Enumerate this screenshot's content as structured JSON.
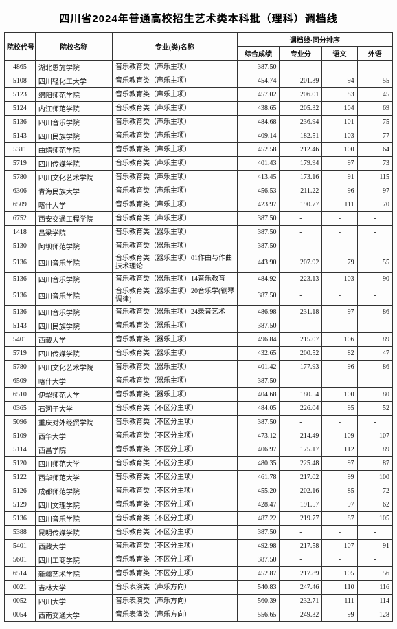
{
  "title": "四川省2024年普通高校招生艺术类本科批（理科）调档线",
  "headers": {
    "code": "院校代号",
    "name": "院校名称",
    "major": "专业(类)名称",
    "group": "调档线·同分排序",
    "zh": "综合成绩",
    "zy": "专业分",
    "yw": "语文",
    "wy": "外语"
  },
  "rows": [
    {
      "code": "4865",
      "name": "湖北恩施学院",
      "major": "音乐教育类（声乐主项）",
      "zh": "387.50",
      "zy": "-",
      "yw": "-",
      "wy": "-"
    },
    {
      "code": "5108",
      "name": "四川轻化工大学",
      "major": "音乐教育类（声乐主项）",
      "zh": "454.74",
      "zy": "201.39",
      "yw": "94",
      "wy": "55"
    },
    {
      "code": "5123",
      "name": "绵阳师范学院",
      "major": "音乐教育类（声乐主项）",
      "zh": "457.02",
      "zy": "206.01",
      "yw": "83",
      "wy": "45"
    },
    {
      "code": "5124",
      "name": "内江师范学院",
      "major": "音乐教育类（声乐主项）",
      "zh": "438.65",
      "zy": "205.32",
      "yw": "104",
      "wy": "69"
    },
    {
      "code": "5136",
      "name": "四川音乐学院",
      "major": "音乐教育类（声乐主项）",
      "zh": "484.68",
      "zy": "236.94",
      "yw": "101",
      "wy": "75"
    },
    {
      "code": "5143",
      "name": "四川民族学院",
      "major": "音乐教育类（声乐主项）",
      "zh": "409.14",
      "zy": "182.51",
      "yw": "103",
      "wy": "77"
    },
    {
      "code": "5311",
      "name": "曲靖师范学院",
      "major": "音乐教育类（声乐主项）",
      "zh": "452.58",
      "zy": "212.46",
      "yw": "100",
      "wy": "64"
    },
    {
      "code": "5719",
      "name": "四川传媒学院",
      "major": "音乐教育类（声乐主项）",
      "zh": "401.43",
      "zy": "179.94",
      "yw": "97",
      "wy": "73"
    },
    {
      "code": "5780",
      "name": "四川文化艺术学院",
      "major": "音乐教育类（声乐主项）",
      "zh": "413.45",
      "zy": "173.16",
      "yw": "91",
      "wy": "115"
    },
    {
      "code": "6306",
      "name": "青海民族大学",
      "major": "音乐教育类（声乐主项）",
      "zh": "456.53",
      "zy": "211.22",
      "yw": "96",
      "wy": "97"
    },
    {
      "code": "6509",
      "name": "喀什大学",
      "major": "音乐教育类（声乐主项）",
      "zh": "423.97",
      "zy": "190.77",
      "yw": "111",
      "wy": "70"
    },
    {
      "code": "6752",
      "name": "西安交通工程学院",
      "major": "音乐教育类（声乐主项）",
      "zh": "387.50",
      "zy": "-",
      "yw": "-",
      "wy": "-"
    },
    {
      "code": "1418",
      "name": "吕梁学院",
      "major": "音乐教育类（器乐主项）",
      "zh": "387.50",
      "zy": "-",
      "yw": "-",
      "wy": "-"
    },
    {
      "code": "5130",
      "name": "阿坝师范学院",
      "major": "音乐教育类（器乐主项）",
      "zh": "387.50",
      "zy": "-",
      "yw": "-",
      "wy": "-"
    },
    {
      "code": "5136",
      "name": "四川音乐学院",
      "major": "音乐教育类（器乐主项）01作曲与作曲技术理论",
      "zh": "443.90",
      "zy": "207.92",
      "yw": "79",
      "wy": "55"
    },
    {
      "code": "5136",
      "name": "四川音乐学院",
      "major": "音乐教育类（器乐主项）14音乐教育",
      "zh": "484.92",
      "zy": "223.13",
      "yw": "103",
      "wy": "90"
    },
    {
      "code": "5136",
      "name": "四川音乐学院",
      "major": "音乐教育类（器乐主项）20音乐学(钢琴调律)",
      "zh": "387.50",
      "zy": "-",
      "yw": "-",
      "wy": "-"
    },
    {
      "code": "5136",
      "name": "四川音乐学院",
      "major": "音乐教育类（器乐主项）24录音艺术",
      "zh": "486.98",
      "zy": "231.18",
      "yw": "97",
      "wy": "86"
    },
    {
      "code": "5143",
      "name": "四川民族学院",
      "major": "音乐教育类（器乐主项）",
      "zh": "387.50",
      "zy": "-",
      "yw": "-",
      "wy": "-"
    },
    {
      "code": "5401",
      "name": "西藏大学",
      "major": "音乐教育类（器乐主项）",
      "zh": "496.84",
      "zy": "215.07",
      "yw": "106",
      "wy": "89"
    },
    {
      "code": "5719",
      "name": "四川传媒学院",
      "major": "音乐教育类（器乐主项）",
      "zh": "432.65",
      "zy": "200.52",
      "yw": "82",
      "wy": "47"
    },
    {
      "code": "5780",
      "name": "四川文化艺术学院",
      "major": "音乐教育类（器乐主项）",
      "zh": "401.42",
      "zy": "177.93",
      "yw": "96",
      "wy": "86"
    },
    {
      "code": "6509",
      "name": "喀什大学",
      "major": "音乐教育类（器乐主项）",
      "zh": "387.50",
      "zy": "-",
      "yw": "-",
      "wy": "-"
    },
    {
      "code": "6510",
      "name": "伊犁师范大学",
      "major": "音乐教育类（器乐主项）",
      "zh": "404.68",
      "zy": "180.54",
      "yw": "100",
      "wy": "80"
    },
    {
      "code": "0365",
      "name": "石河子大学",
      "major": "音乐教育类（不区分主项）",
      "zh": "484.05",
      "zy": "226.04",
      "yw": "95",
      "wy": "52"
    },
    {
      "code": "5096",
      "name": "重庆对外经贸学院",
      "major": "音乐教育类（不区分主项）",
      "zh": "387.50",
      "zy": "-",
      "yw": "-",
      "wy": "-"
    },
    {
      "code": "5109",
      "name": "西华大学",
      "major": "音乐教育类（不区分主项）",
      "zh": "473.12",
      "zy": "214.49",
      "yw": "109",
      "wy": "107"
    },
    {
      "code": "5114",
      "name": "西昌学院",
      "major": "音乐教育类（不区分主项）",
      "zh": "406.97",
      "zy": "175.17",
      "yw": "112",
      "wy": "89"
    },
    {
      "code": "5120",
      "name": "四川师范大学",
      "major": "音乐教育类（不区分主项）",
      "zh": "480.35",
      "zy": "225.48",
      "yw": "97",
      "wy": "87"
    },
    {
      "code": "5122",
      "name": "西华师范大学",
      "major": "音乐教育类（不区分主项）",
      "zh": "461.78",
      "zy": "217.02",
      "yw": "99",
      "wy": "100"
    },
    {
      "code": "5126",
      "name": "成都师范学院",
      "major": "音乐教育类（不区分主项）",
      "zh": "455.20",
      "zy": "202.16",
      "yw": "85",
      "wy": "72"
    },
    {
      "code": "5129",
      "name": "四川文理学院",
      "major": "音乐教育类（不区分主项）",
      "zh": "428.47",
      "zy": "191.57",
      "yw": "97",
      "wy": "62"
    },
    {
      "code": "5136",
      "name": "四川音乐学院",
      "major": "音乐教育类（不区分主项）",
      "zh": "487.22",
      "zy": "219.77",
      "yw": "87",
      "wy": "105"
    },
    {
      "code": "5388",
      "name": "昆明传媒学院",
      "major": "音乐教育类（不区分主项）",
      "zh": "387.50",
      "zy": "-",
      "yw": "-",
      "wy": "-"
    },
    {
      "code": "5401",
      "name": "西藏大学",
      "major": "音乐教育类（不区分主项）",
      "zh": "492.98",
      "zy": "217.58",
      "yw": "107",
      "wy": "91"
    },
    {
      "code": "5601",
      "name": "四川工商学院",
      "major": "音乐教育类（不区分主项）",
      "zh": "387.50",
      "zy": "-",
      "yw": "-",
      "wy": "-"
    },
    {
      "code": "6514",
      "name": "新疆艺术学院",
      "major": "音乐教育类（不区分主项）",
      "zh": "452.87",
      "zy": "217.89",
      "yw": "105",
      "wy": "56"
    },
    {
      "code": "0021",
      "name": "吉林大学",
      "major": "音乐表演类（声乐方向）",
      "zh": "540.83",
      "zy": "247.46",
      "yw": "110",
      "wy": "116"
    },
    {
      "code": "0052",
      "name": "四川大学",
      "major": "音乐表演类（声乐方向）",
      "zh": "560.39",
      "zy": "232.71",
      "yw": "111",
      "wy": "114"
    },
    {
      "code": "0054",
      "name": "西南交通大学",
      "major": "音乐表演类（声乐方向）",
      "zh": "556.65",
      "zy": "249.32",
      "yw": "99",
      "wy": "128"
    }
  ]
}
